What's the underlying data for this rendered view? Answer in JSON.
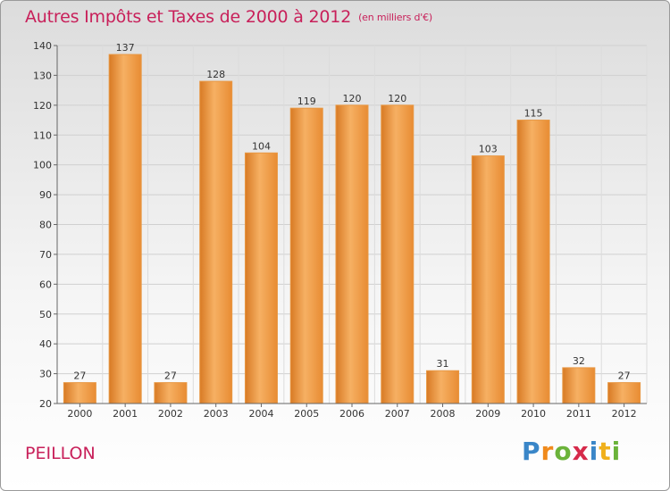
{
  "title": "Autres Impôts et Taxes de 2000 à 2012",
  "unit": "(en milliers d'€)",
  "commune": "PEILLON",
  "logo": "Proxiti",
  "colors": {
    "bar": "#f0a04b",
    "bar_light": "#f6b063",
    "bar_dark": "#d87a24",
    "title": "#c8205a"
  },
  "chart_data": {
    "type": "bar",
    "title": "Autres Impôts et Taxes de 2000 à 2012",
    "subtitle": "(en milliers d'€)",
    "xlabel": "",
    "ylabel": "",
    "categories": [
      "2000",
      "2001",
      "2002",
      "2003",
      "2004",
      "2005",
      "2006",
      "2007",
      "2008",
      "2009",
      "2010",
      "2011",
      "2012"
    ],
    "values": [
      27,
      137,
      27,
      128,
      104,
      119,
      120,
      120,
      31,
      103,
      115,
      32,
      27
    ],
    "ylim": [
      20,
      140
    ],
    "yticks": [
      20,
      30,
      40,
      50,
      60,
      70,
      80,
      90,
      100,
      110,
      120,
      130,
      140
    ],
    "grid": true
  }
}
